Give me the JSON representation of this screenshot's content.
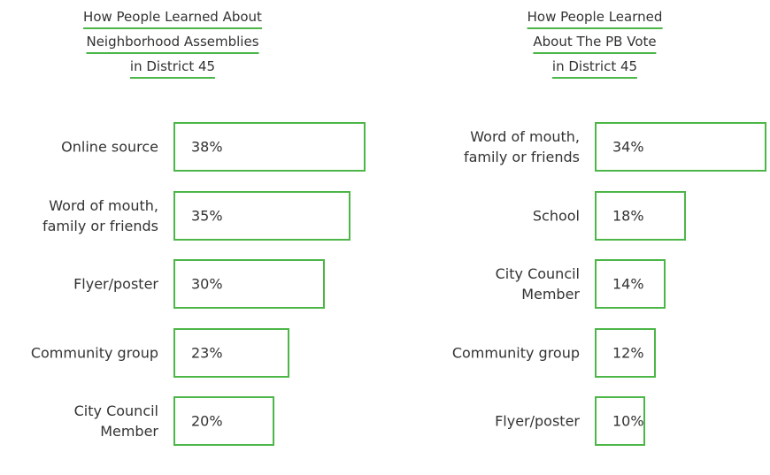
{
  "chart_data": [
    {
      "type": "bar",
      "orientation": "horizontal",
      "title": [
        "How People Learned About",
        "Neighborhood Assemblies",
        "in District 45"
      ],
      "categories": [
        "Online source",
        "Word of mouth,\nfamily or friends",
        "Flyer/poster",
        "Community group",
        "City Council\nMember"
      ],
      "values": [
        38,
        35,
        30,
        23,
        20
      ],
      "value_labels": [
        "38%",
        "35%",
        "30%",
        "23%",
        "20%"
      ],
      "color": "#4cb648"
    },
    {
      "type": "bar",
      "orientation": "horizontal",
      "title": [
        "How People Learned",
        "About The PB Vote",
        "in District 45"
      ],
      "categories": [
        "Word of mouth,\nfamily or friends",
        "School",
        "City Council\nMember",
        "Community group",
        "Flyer/poster"
      ],
      "values": [
        34,
        18,
        14,
        12,
        10
      ],
      "value_labels": [
        "34%",
        "18%",
        "14%",
        "12%",
        "10%"
      ],
      "color": "#4cb648"
    }
  ]
}
